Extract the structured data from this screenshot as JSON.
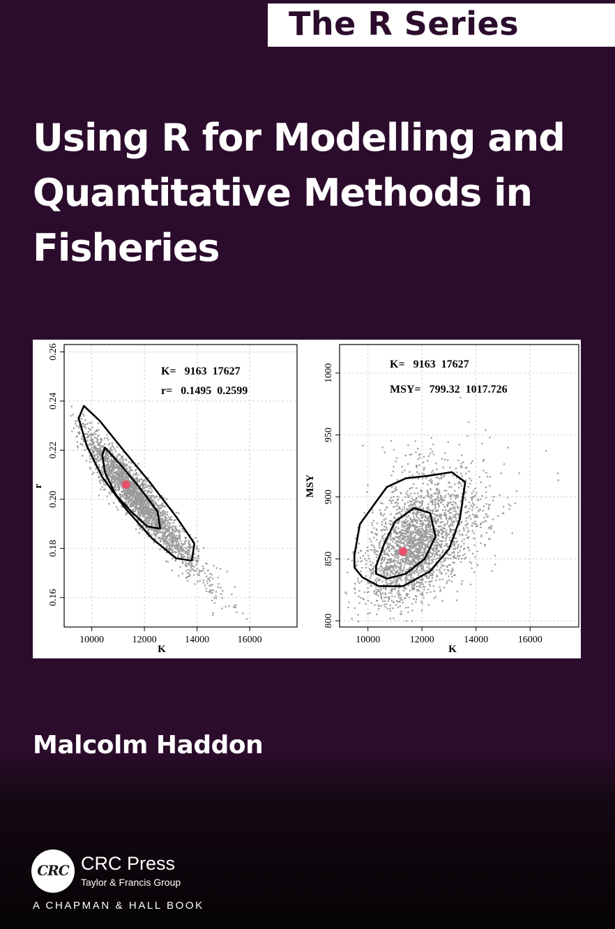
{
  "series": {
    "label": "The R Series"
  },
  "book": {
    "title_lines": [
      "Using R for Modelling and",
      "Quantitative Methods in",
      "Fisheries"
    ],
    "author": "Malcolm Haddon"
  },
  "publisher": {
    "logo_text": "CRC",
    "name": "CRC Press",
    "group": "Taylor & Francis Group",
    "imprint": "A CHAPMAN & HALL BOOK"
  },
  "colors": {
    "background": "#2c0c2c",
    "points": "#9a9a9a",
    "optimum": "#e8506a",
    "contour": "#000000"
  },
  "chart_data": [
    {
      "type": "scatter",
      "xlabel": "K",
      "ylabel": "r",
      "xticks": [
        10000,
        12000,
        14000,
        16000
      ],
      "yticks": [
        0.16,
        0.18,
        0.2,
        0.22,
        0.24,
        0.26
      ],
      "xlim": [
        8950,
        17800
      ],
      "ylim": [
        0.148,
        0.263
      ],
      "grid": true,
      "annotations": [
        "K=   9163  17627",
        "r=   0.1495  0.2599"
      ],
      "optimum": {
        "x": 11300,
        "y": 0.206
      },
      "point_cloud": {
        "center_x": 11700,
        "center_y": 0.201,
        "correlation": "strong negative",
        "range_x": [
          9163,
          17627
        ],
        "range_y": [
          0.1495,
          0.2599
        ]
      },
      "contours": [
        [
          [
            9700,
            0.238
          ],
          [
            10300,
            0.232
          ],
          [
            11200,
            0.22
          ],
          [
            12200,
            0.207
          ],
          [
            13200,
            0.193
          ],
          [
            13900,
            0.182
          ],
          [
            13800,
            0.175
          ],
          [
            13200,
            0.176
          ],
          [
            12300,
            0.184
          ],
          [
            11300,
            0.196
          ],
          [
            10400,
            0.209
          ],
          [
            9800,
            0.222
          ],
          [
            9500,
            0.233
          ]
        ],
        [
          [
            10500,
            0.221
          ],
          [
            11100,
            0.214
          ],
          [
            11800,
            0.205
          ],
          [
            12500,
            0.195
          ],
          [
            12600,
            0.188
          ],
          [
            12100,
            0.189
          ],
          [
            11500,
            0.195
          ],
          [
            10900,
            0.202
          ],
          [
            10500,
            0.211
          ],
          [
            10400,
            0.218
          ]
        ]
      ]
    },
    {
      "type": "scatter",
      "xlabel": "K",
      "ylabel": "MSY",
      "xticks": [
        10000,
        12000,
        14000,
        16000
      ],
      "yticks": [
        800,
        850,
        900,
        950,
        1000
      ],
      "xlim": [
        8950,
        17800
      ],
      "ylim": [
        795,
        1023
      ],
      "grid": true,
      "annotations": [
        "K=   9163  17627",
        "MSY=   799.32  1017.726"
      ],
      "optimum": {
        "x": 11300,
        "y": 856
      },
      "point_cloud": {
        "center_x": 11800,
        "center_y": 862,
        "correlation": "weak positive",
        "range_x": [
          9163,
          17627
        ],
        "range_y": [
          799.32,
          1017.726
        ]
      },
      "contours": [
        [
          [
            9500,
            853
          ],
          [
            9700,
            878
          ],
          [
            10200,
            893
          ],
          [
            10700,
            908
          ],
          [
            11400,
            915
          ],
          [
            12200,
            917
          ],
          [
            13100,
            920
          ],
          [
            13600,
            912
          ],
          [
            13400,
            882
          ],
          [
            13000,
            858
          ],
          [
            12300,
            840
          ],
          [
            11300,
            828
          ],
          [
            10400,
            828
          ],
          [
            9800,
            835
          ],
          [
            9500,
            843
          ]
        ],
        [
          [
            10300,
            844
          ],
          [
            10600,
            862
          ],
          [
            11000,
            880
          ],
          [
            11700,
            891
          ],
          [
            12300,
            887
          ],
          [
            12500,
            868
          ],
          [
            12100,
            850
          ],
          [
            11400,
            838
          ],
          [
            10700,
            834
          ],
          [
            10300,
            838
          ]
        ]
      ]
    }
  ]
}
